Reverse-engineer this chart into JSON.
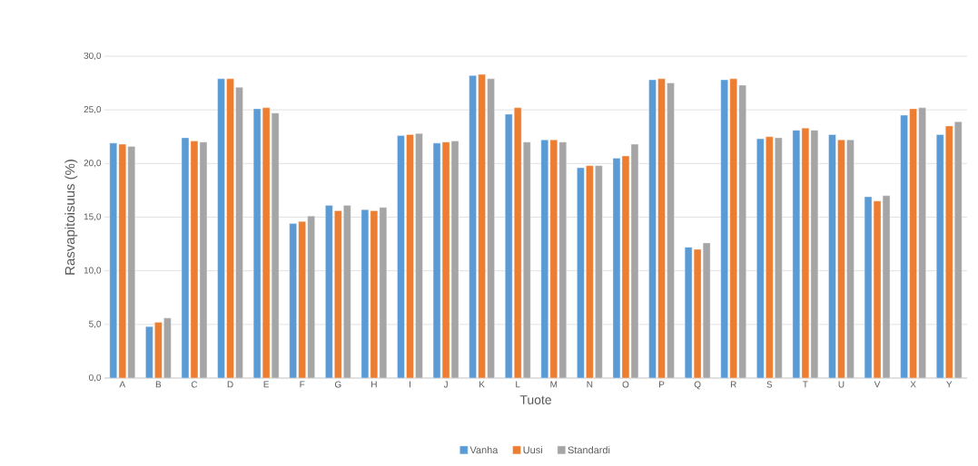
{
  "chart_data": {
    "type": "bar",
    "xlabel": "Tuote",
    "ylabel": "Rasvapitoisuus (%)",
    "categories": [
      "A",
      "B",
      "C",
      "D",
      "E",
      "F",
      "G",
      "H",
      "I",
      "J",
      "K",
      "L",
      "M",
      "N",
      "O",
      "P",
      "Q",
      "R",
      "S",
      "T",
      "U",
      "V",
      "X",
      "Y"
    ],
    "series": [
      {
        "name": "Vanha",
        "color": "#5b9bd5",
        "values": [
          21.9,
          4.8,
          22.4,
          27.9,
          25.1,
          14.4,
          16.1,
          15.7,
          22.6,
          21.9,
          28.2,
          24.6,
          22.2,
          19.6,
          20.5,
          27.8,
          12.2,
          27.8,
          22.3,
          23.1,
          22.7,
          16.9,
          24.5,
          22.7
        ]
      },
      {
        "name": "Uusi",
        "color": "#ed7d31",
        "values": [
          21.8,
          5.2,
          22.1,
          27.9,
          25.2,
          14.6,
          15.6,
          15.6,
          22.7,
          22.0,
          28.3,
          25.2,
          22.2,
          19.8,
          20.7,
          27.9,
          12.0,
          27.9,
          22.5,
          23.3,
          22.2,
          16.5,
          25.1,
          23.5
        ]
      },
      {
        "name": "Standardi",
        "color": "#a5a5a5",
        "values": [
          21.6,
          5.6,
          22.0,
          27.1,
          24.7,
          15.1,
          16.1,
          15.9,
          22.8,
          22.1,
          27.9,
          22.0,
          22.0,
          19.8,
          21.8,
          27.5,
          12.6,
          27.3,
          22.4,
          23.1,
          22.2,
          17.0,
          25.2,
          23.9
        ]
      }
    ],
    "ylim": [
      0,
      30
    ],
    "yticks": [
      {
        "value": 0,
        "label": "0,0"
      },
      {
        "value": 5,
        "label": "5,0"
      },
      {
        "value": 10,
        "label": "10,0"
      },
      {
        "value": 15,
        "label": "15,0"
      },
      {
        "value": 20,
        "label": "20,0"
      },
      {
        "value": 25,
        "label": "25,0"
      },
      {
        "value": 30,
        "label": "30,0"
      }
    ],
    "grid": "y",
    "legend": "bottom"
  }
}
